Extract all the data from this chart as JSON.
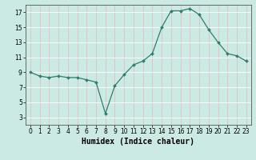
{
  "x": [
    0,
    1,
    2,
    3,
    4,
    5,
    6,
    7,
    8,
    9,
    10,
    11,
    12,
    13,
    14,
    15,
    16,
    17,
    18,
    19,
    20,
    21,
    22,
    23
  ],
  "y": [
    9,
    8.5,
    8.3,
    8.5,
    8.3,
    8.3,
    8.0,
    7.7,
    3.5,
    7.2,
    8.7,
    10.0,
    10.5,
    11.5,
    15.0,
    17.2,
    17.2,
    17.5,
    16.7,
    14.7,
    13.0,
    11.5,
    11.2,
    10.5
  ],
  "line_color": "#2e7d6e",
  "marker": "D",
  "marker_size": 2.0,
  "background_color": "#cceae4",
  "grid_color_major": "#e8b4b8",
  "grid_color_minor": "#ffffff",
  "xlabel": "Humidex (Indice chaleur)",
  "xlim": [
    -0.5,
    23.5
  ],
  "ylim": [
    2,
    18
  ],
  "yticks": [
    3,
    5,
    7,
    9,
    11,
    13,
    15,
    17
  ],
  "xtick_labels": [
    "0",
    "1",
    "2",
    "3",
    "4",
    "5",
    "6",
    "7",
    "8",
    "9",
    "10",
    "11",
    "12",
    "13",
    "14",
    "15",
    "16",
    "17",
    "18",
    "19",
    "20",
    "21",
    "22",
    "23"
  ],
  "tick_label_fontsize": 5.5,
  "xlabel_fontsize": 7.0,
  "linewidth": 0.9
}
